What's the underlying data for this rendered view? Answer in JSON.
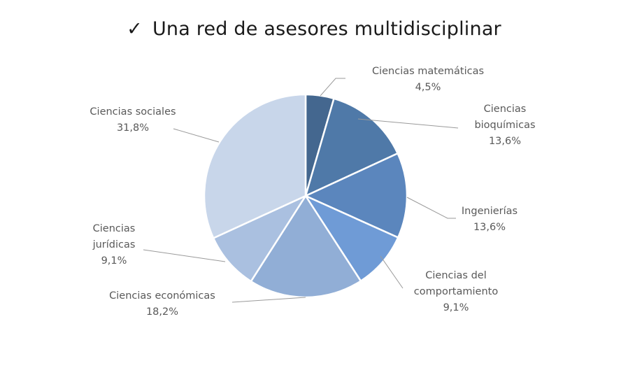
{
  "header": {
    "check_icon": "checkmark-icon",
    "check_glyph": "✓",
    "title": "Una red de asesores multidisciplinar"
  },
  "chart_data": {
    "type": "pie",
    "title": "",
    "slices": [
      {
        "label_lines": [
          "Ciencias matemáticas"
        ],
        "value_label": "4,5%",
        "value": 4.5,
        "color": "#44678f"
      },
      {
        "label_lines": [
          "Ciencias",
          "bioquímicas"
        ],
        "value_label": "13,6%",
        "value": 13.6,
        "color": "#4f79a8"
      },
      {
        "label_lines": [
          "Ingenierías"
        ],
        "value_label": "13,6%",
        "value": 13.6,
        "color": "#5b86bd"
      },
      {
        "label_lines": [
          "Ciencias del",
          "comportamiento"
        ],
        "value_label": "9,1%",
        "value": 9.1,
        "color": "#6f9bd6"
      },
      {
        "label_lines": [
          "Ciencias económicas"
        ],
        "value_label": "18,2%",
        "value": 18.2,
        "color": "#91aed6"
      },
      {
        "label_lines": [
          "Ciencias",
          "jurídicas"
        ],
        "value_label": "9,1%",
        "value": 9.1,
        "color": "#aac0e0"
      },
      {
        "label_lines": [
          "Ciencias sociales"
        ],
        "value_label": "31,8%",
        "value": 31.8,
        "color": "#c8d6ea"
      }
    ]
  }
}
